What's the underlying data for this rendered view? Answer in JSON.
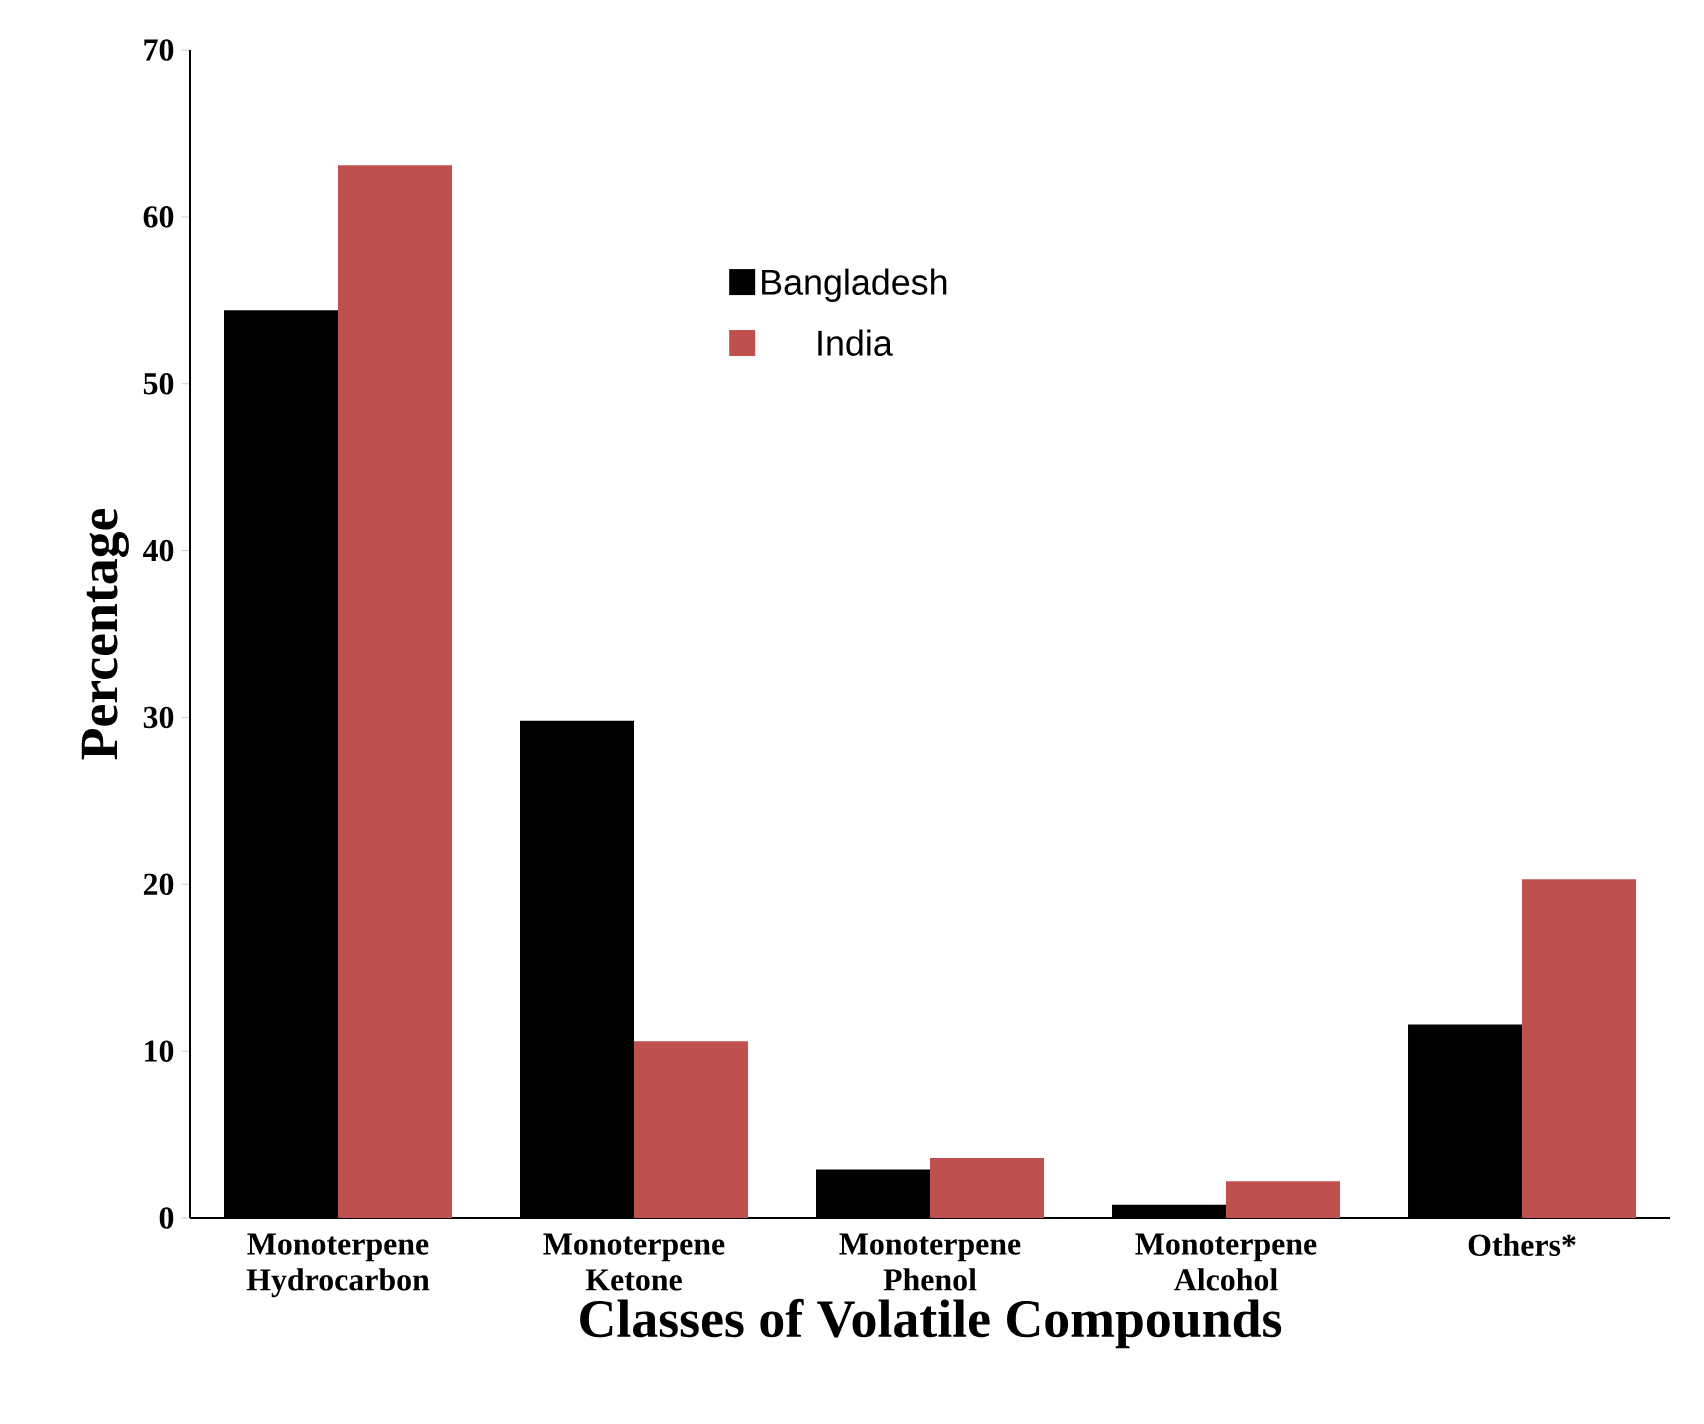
{
  "chart_data": {
    "type": "bar",
    "xlabel": "Classes of Volatile Compounds",
    "ylabel": "Percentage",
    "categories": [
      "Monoterpene Hydrocarbon",
      "Monoterpene Ketone",
      "Monoterpene Phenol",
      "Monoterpene Alcohol",
      "Others*"
    ],
    "series": [
      {
        "name": "Bangladesh",
        "color": "#000000",
        "values": [
          54.4,
          29.8,
          2.9,
          0.8,
          11.6
        ]
      },
      {
        "name": "India",
        "color": "#c0504d",
        "values": [
          63.1,
          10.6,
          3.6,
          2.2,
          20.3
        ]
      }
    ],
    "ylim": [
      0,
      70
    ],
    "yticks": [
      0,
      10,
      20,
      30,
      40,
      50,
      60,
      70
    ],
    "grid": false,
    "legend": "top"
  }
}
